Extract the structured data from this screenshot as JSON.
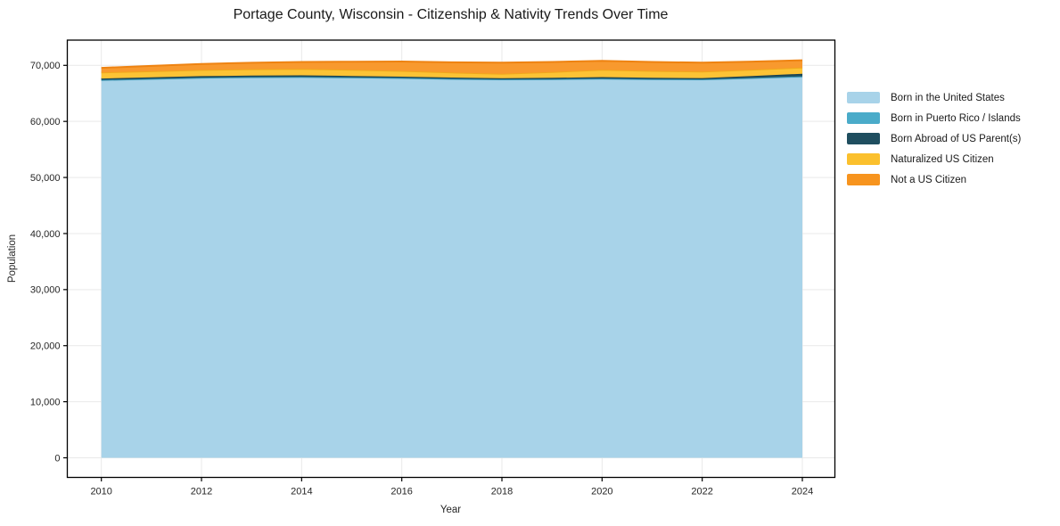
{
  "chart": {
    "title": "Portage County, Wisconsin - Citizenship & Nativity Trends Over Time",
    "xlabel": "Year",
    "ylabel": "Population"
  },
  "legend": {
    "position": "outside-right",
    "items": [
      {
        "label": "Born in the United States",
        "color": "#a8d3e9"
      },
      {
        "label": "Born in Puerto Rico / Islands",
        "color": "#4aabc9"
      },
      {
        "label": "Born Abroad of US Parent(s)",
        "color": "#1f4e5f"
      },
      {
        "label": "Naturalized US Citizen",
        "color": "#fbc02d"
      },
      {
        "label": "Not a US Citizen",
        "color": "#f7941e"
      }
    ]
  },
  "chart_data": {
    "type": "area",
    "stacked": true,
    "title": "Portage County, Wisconsin - Citizenship & Nativity Trends Over Time",
    "xlabel": "Year",
    "ylabel": "Population",
    "x": [
      2010,
      2011,
      2012,
      2013,
      2014,
      2015,
      2016,
      2017,
      2018,
      2019,
      2020,
      2021,
      2022,
      2023,
      2024
    ],
    "series": [
      {
        "name": "Born in the United States",
        "color": "#a8d3e9",
        "edge_color": "#8fc2dd",
        "values": [
          67350,
          67550,
          67750,
          67850,
          67900,
          67800,
          67700,
          67550,
          67450,
          67500,
          67600,
          67500,
          67450,
          67700,
          67950
        ]
      },
      {
        "name": "Born in Puerto Rico / Islands",
        "color": "#4aabc9",
        "edge_color": "#3d98b5",
        "values": [
          50,
          50,
          50,
          50,
          50,
          50,
          50,
          50,
          50,
          50,
          50,
          50,
          50,
          50,
          100
        ]
      },
      {
        "name": "Born Abroad of US Parent(s)",
        "color": "#1f4e5f",
        "edge_color": "#1a4253",
        "values": [
          250,
          250,
          270,
          270,
          270,
          250,
          230,
          220,
          210,
          230,
          250,
          230,
          220,
          350,
          450
        ]
      },
      {
        "name": "Naturalized US Citizen",
        "color": "#fcc335",
        "edge_color": "#f0a81c",
        "values": [
          1100,
          1100,
          1120,
          1140,
          1160,
          1100,
          1040,
          900,
          800,
          1050,
          1300,
          1230,
          1160,
          1140,
          1120
        ]
      },
      {
        "name": "Not a US Citizen",
        "color": "#f8992e",
        "edge_color": "#ee8312",
        "values": [
          800,
          950,
          1070,
          1150,
          1230,
          1450,
          1670,
          1820,
          1960,
          1780,
          1600,
          1590,
          1590,
          1430,
          1280
        ]
      }
    ],
    "xticks": [
      2010,
      2012,
      2014,
      2016,
      2018,
      2020,
      2022,
      2024
    ],
    "xtick_labels": [
      "2010",
      "2012",
      "2014",
      "2016",
      "2018",
      "2020",
      "2022",
      "2024"
    ],
    "yticks": [
      0,
      10000,
      20000,
      30000,
      40000,
      50000,
      60000,
      70000
    ],
    "ytick_labels": [
      "0",
      "10,000",
      "20,000",
      "30,000",
      "40,000",
      "50,000",
      "60,000",
      "70,000"
    ],
    "xlim": [
      2009.32,
      2024.65
    ],
    "ylim": [
      -3500,
      74500
    ],
    "grid": true,
    "grid_color": "#e9e9e9",
    "spine_color": "#000000",
    "legend_position": "outside-right"
  }
}
